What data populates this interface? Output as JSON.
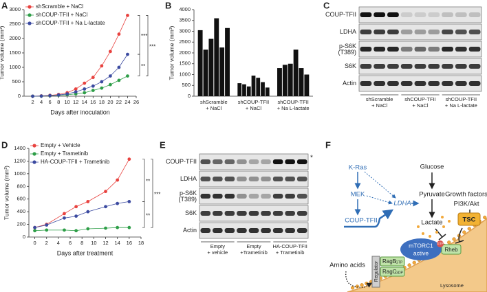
{
  "panel_labels": [
    "A",
    "B",
    "C",
    "D",
    "E",
    "F"
  ],
  "chart_data": [
    {
      "type": "line",
      "x": [
        2,
        4,
        6,
        8,
        10,
        12,
        14,
        16,
        18,
        20,
        22,
        24
      ],
      "xlim": [
        0,
        26
      ],
      "xticks": [
        2,
        4,
        6,
        8,
        10,
        12,
        14,
        16,
        18,
        20,
        22,
        24,
        26
      ],
      "ylim": [
        0,
        3000
      ],
      "yticks": [
        0,
        500,
        1000,
        1500,
        2000,
        2500,
        3000
      ],
      "xlabel": "Days after inoculation",
      "ylabel": "Tumor volume (mm³)",
      "legend": "upper left",
      "annotations": [
        "***",
        "**",
        "***"
      ],
      "series": [
        {
          "name": "shScramble + NaCl",
          "color": "#e8423f",
          "values": [
            0,
            10,
            30,
            60,
            120,
            250,
            450,
            650,
            1050,
            1550,
            2150,
            2800
          ]
        },
        {
          "name": "shCOUP-TFII + NaCl",
          "color": "#2e9e48",
          "values": [
            0,
            5,
            15,
            30,
            50,
            80,
            120,
            200,
            280,
            400,
            550,
            700
          ]
        },
        {
          "name": "shCOUP-TFII + Na L-lactate",
          "color": "#3b4aa0",
          "values": [
            0,
            5,
            20,
            40,
            80,
            150,
            250,
            350,
            500,
            700,
            1000,
            1450
          ]
        }
      ]
    },
    {
      "type": "bar",
      "categories": [
        [
          "shScramble",
          "+ NaCl"
        ],
        [
          "shCOUP-TFII",
          "+ NaCl"
        ],
        [
          "shCOUP-TFII",
          "+ Na L-lactate"
        ]
      ],
      "values": [
        [
          3050,
          2150,
          2650,
          3600,
          2250,
          3150
        ],
        [
          600,
          550,
          450,
          950,
          850,
          650,
          400
        ],
        [
          1300,
          1450,
          1500,
          2150,
          1300,
          1000
        ]
      ],
      "color": "#111111",
      "ylim": [
        0,
        4000
      ],
      "yticks": [
        0,
        500,
        1000,
        1500,
        2000,
        2500,
        3000,
        3500,
        4000
      ],
      "ylabel": "Tumor volume (mm³)"
    },
    {
      "type": "line",
      "x": [
        0,
        2,
        5,
        7,
        9,
        12,
        14,
        16
      ],
      "xlim": [
        -1,
        18
      ],
      "xticks": [
        0,
        2,
        4,
        6,
        8,
        10,
        12,
        14,
        16,
        18
      ],
      "ylim": [
        0,
        1400
      ],
      "yticks": [
        0,
        200,
        400,
        600,
        800,
        1000,
        1200,
        1400
      ],
      "xlabel": "Days after treatment",
      "ylabel": "Tumor volume (mm³)",
      "legend": "upper left",
      "annotations": [
        "**",
        "**",
        "***"
      ],
      "series": [
        {
          "name": "Empty + Vehicle",
          "color": "#e8423f",
          "values": [
            150,
            200,
            370,
            480,
            560,
            720,
            900,
            1230
          ]
        },
        {
          "name": "Empty + Trametinib",
          "color": "#2e9e48",
          "values": [
            100,
            110,
            110,
            100,
            130,
            140,
            150,
            150
          ]
        },
        {
          "name": "HA-COUP-TFII + Trametinib",
          "color": "#3b4aa0",
          "values": [
            150,
            190,
            300,
            330,
            400,
            480,
            530,
            560
          ]
        }
      ]
    }
  ],
  "blots": [
    {
      "rows": [
        "COUP-TFII",
        "LDHA",
        [
          "p-S6K",
          "(T389)"
        ],
        "S6K",
        "Actin"
      ],
      "groups": [
        [
          "shScramble",
          "+ NaCl"
        ],
        [
          "shCOUP-TFII",
          "+ NaCl"
        ],
        [
          "shCOUP-TFII",
          "+ Na L-lactate"
        ]
      ],
      "annotations": []
    },
    {
      "rows": [
        "COUP-TFII",
        "LDHA",
        [
          "p-S6K",
          "(T389)"
        ],
        "S6K",
        "Actin"
      ],
      "groups": [
        [
          "Empty",
          "+ vehicle"
        ],
        [
          "Empty",
          "+Trametinib"
        ],
        [
          "HA-COUP-TFII",
          "+ Trametinib"
        ]
      ],
      "annotations": [
        "*"
      ]
    }
  ],
  "diagram": {
    "kras": "K-Ras",
    "mek": "MEK",
    "coup": "COUP-TFII",
    "ldha": "LDHA",
    "glucose": "Glucose",
    "pyruvate": "Pyruvate",
    "lactate": "Lactate",
    "growth": "Growth factors",
    "pi3k": "PI3K/Akt",
    "tsc": "TSC",
    "mtorc1": [
      "mTORC1",
      "active"
    ],
    "rheb": "Rheb",
    "gtp": "GTP",
    "ragb": "RagB",
    "ragb_state": "GTP",
    "ragc": "RagC",
    "ragc_state": "GDP",
    "regulator": "Regulator",
    "amino": "Amino acids",
    "lysosome": "Lysosome"
  }
}
